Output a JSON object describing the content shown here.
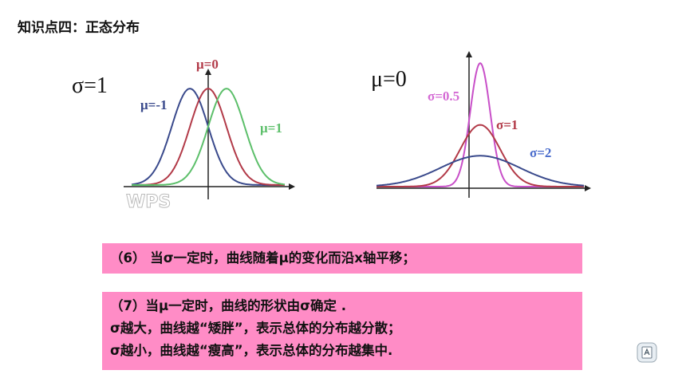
{
  "title": "知识点四：正态分布",
  "left_plot": {
    "heading": "σ=1",
    "curves": [
      {
        "label": "μ=-1",
        "mu": -1,
        "sigma": 1,
        "color": "#3a4a8c"
      },
      {
        "label": "μ=0",
        "mu": 0,
        "sigma": 1,
        "color": "#b23a48"
      },
      {
        "label": "μ=1",
        "mu": 1,
        "sigma": 1,
        "color": "#5cbf6a"
      }
    ],
    "watermark": "WPS"
  },
  "right_plot": {
    "heading": "μ=0",
    "curves": [
      {
        "label": "σ=0.5",
        "mu": 0,
        "sigma": 0.5,
        "color": "#c84fc8"
      },
      {
        "label": "σ=1",
        "mu": 0,
        "sigma": 1,
        "color": "#b23a48"
      },
      {
        "label": "σ=2",
        "mu": 0,
        "sigma": 2,
        "color": "#3a4a8c"
      }
    ]
  },
  "box1": {
    "text": "（6） 当σ一定时，曲线随着μ的变化而沿x轴平移；"
  },
  "box2": {
    "line1": "（7）当μ一定时，曲线的形状由σ确定 .",
    "line2": "σ越大，曲线越“矮胖”，表示总体的分布越分散；",
    "line3": "σ越小，曲线越“瘦高”，表示总体的分布越集中."
  },
  "colors": {
    "box_bg": "#ff8cc6"
  },
  "corner_icon": "slide-nav-icon"
}
